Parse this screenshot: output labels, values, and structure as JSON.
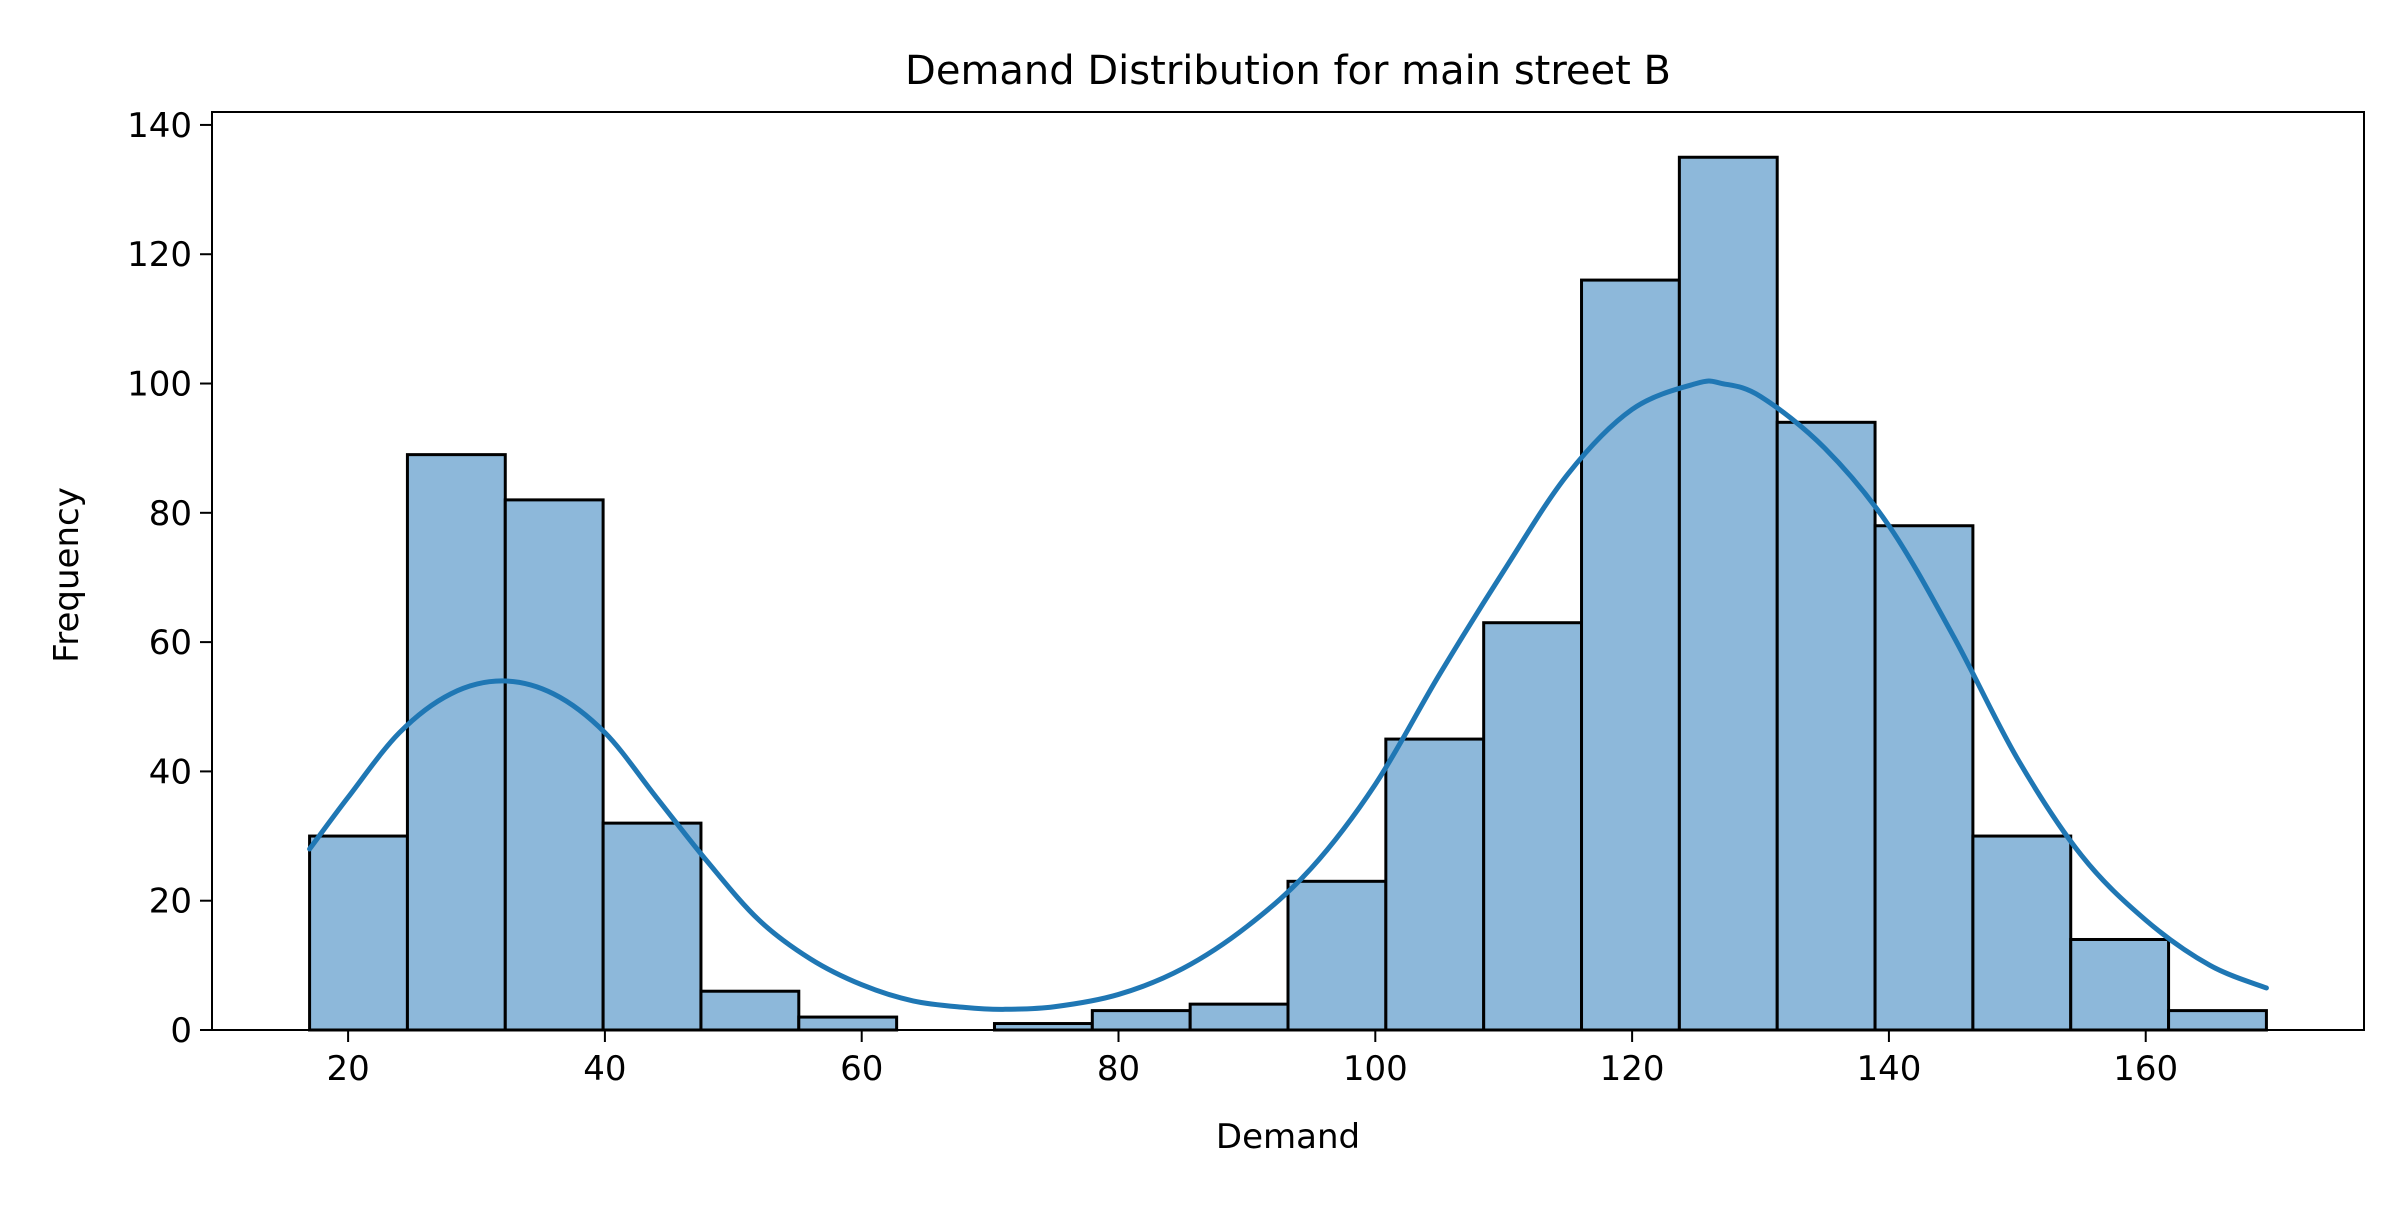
{
  "chart_data": {
    "type": "histogram",
    "title": "Demand Distribution for main street B",
    "xlabel": "Demand",
    "ylabel": "Frequency",
    "xlim": [
      9.4,
      177.0
    ],
    "ylim": [
      0,
      142
    ],
    "xticks": [
      20,
      40,
      60,
      80,
      100,
      120,
      140,
      160
    ],
    "yticks": [
      0,
      20,
      40,
      60,
      80,
      100,
      120,
      140
    ],
    "grid": false,
    "bin_start": 17.0,
    "bin_width": 7.62,
    "bins": [
      {
        "x0": 17.0,
        "x1": 24.62,
        "count": 30
      },
      {
        "x0": 24.62,
        "x1": 32.24,
        "count": 89
      },
      {
        "x0": 32.24,
        "x1": 39.86,
        "count": 82
      },
      {
        "x0": 39.86,
        "x1": 47.48,
        "count": 32
      },
      {
        "x0": 47.48,
        "x1": 55.1,
        "count": 6
      },
      {
        "x0": 55.1,
        "x1": 62.72,
        "count": 2
      },
      {
        "x0": 62.72,
        "x1": 70.34,
        "count": 0
      },
      {
        "x0": 70.34,
        "x1": 77.96,
        "count": 1
      },
      {
        "x0": 77.96,
        "x1": 85.58,
        "count": 3
      },
      {
        "x0": 85.58,
        "x1": 93.2,
        "count": 4
      },
      {
        "x0": 93.2,
        "x1": 100.82,
        "count": 23
      },
      {
        "x0": 100.82,
        "x1": 108.44,
        "count": 45
      },
      {
        "x0": 108.44,
        "x1": 116.06,
        "count": 63
      },
      {
        "x0": 116.06,
        "x1": 123.68,
        "count": 116
      },
      {
        "x0": 123.68,
        "x1": 131.3,
        "count": 135
      },
      {
        "x0": 131.3,
        "x1": 138.92,
        "count": 94
      },
      {
        "x0": 138.92,
        "x1": 146.54,
        "count": 78
      },
      {
        "x0": 146.54,
        "x1": 154.16,
        "count": 30
      },
      {
        "x0": 154.16,
        "x1": 161.78,
        "count": 14
      },
      {
        "x0": 161.78,
        "x1": 169.4,
        "count": 3
      }
    ],
    "kde": {
      "x": [
        17.0,
        20.0,
        24.0,
        28.0,
        32.0,
        36.0,
        40.0,
        44.0,
        48.0,
        52.0,
        56.0,
        60.0,
        64.0,
        68.0,
        71.0,
        75.0,
        80.0,
        85.0,
        90.0,
        95.0,
        100.0,
        105.0,
        110.0,
        115.0,
        120.0,
        125.0,
        127.0,
        130.0,
        135.0,
        140.0,
        145.0,
        150.0,
        155.0,
        160.0,
        165.0,
        169.4
      ],
      "y": [
        28,
        36,
        46,
        52,
        54,
        52,
        46,
        36,
        26,
        17,
        11,
        7,
        4.5,
        3.5,
        3.2,
        3.6,
        5.5,
        9.5,
        16,
        25,
        38,
        55,
        71,
        86,
        96,
        100,
        100,
        98,
        90,
        78,
        61,
        42,
        27,
        17,
        10,
        6.5
      ]
    },
    "colors": {
      "bar_fill": "#8db8da",
      "bar_edge": "#000000",
      "kde_line": "#1f77b4",
      "axes": "#000000"
    }
  }
}
